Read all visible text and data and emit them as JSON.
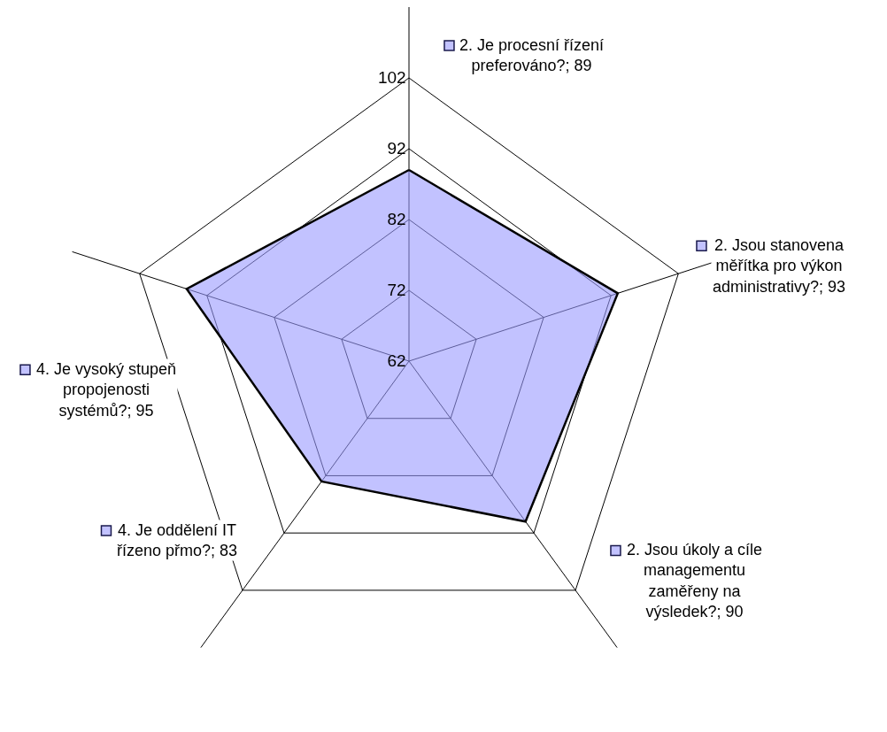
{
  "chart_data": {
    "type": "radar",
    "categories": [
      "2. Je procesní řízení preferováno?; 89",
      "2. Jsou stanovena měřítka pro výkon administrativy?; 93",
      "2. Jsou úkoly a cíle managementu zaměřeny na výsledek?; 90",
      "4. Je oddělení IT řízeno přmo?; 83",
      "4. Je vysoký stupeň propojenosti systémů?; 95"
    ],
    "series": [
      {
        "color": "#9999ff",
        "values": [
          89,
          93,
          90,
          83,
          95
        ]
      }
    ],
    "ylim": [
      62,
      112
    ],
    "yticks": [
      62,
      72,
      82,
      92,
      102
    ],
    "grid": true
  }
}
